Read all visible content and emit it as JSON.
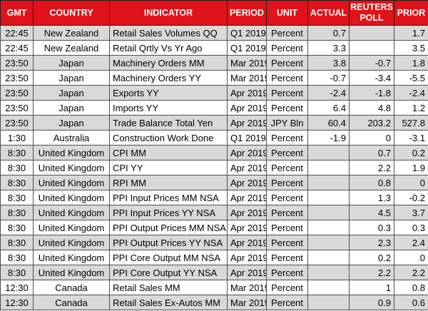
{
  "colors": {
    "header_bg": "#e0131a",
    "header_fg": "#ffffff",
    "row_alt_bg": "#d9d9d9",
    "row_bg": "#ffffff",
    "grid_line": "#4f4f4f"
  },
  "chart_data": {
    "type": "table",
    "title": "Economic indicators release schedule",
    "columns": [
      "GMT",
      "COUNTRY",
      "INDICATOR",
      "PERIOD",
      "UNIT",
      "ACTUAL",
      "REUTERS POLL",
      "PRIOR"
    ],
    "rows": [
      [
        "22:45",
        "New Zealand",
        "Retail Sales Volumes QQ",
        "Q1 2019",
        "Percent",
        "0.7",
        "",
        "1.7"
      ],
      [
        "22:45",
        "New Zealand",
        "Retail Qrtly Vs Yr Ago",
        "Q1 2019",
        "Percent",
        "3.3",
        "",
        "3.5"
      ],
      [
        "23:50",
        "Japan",
        "Machinery Orders MM",
        "Mar 2019",
        "Percent",
        "3.8",
        "-0.7",
        "1.8"
      ],
      [
        "23:50",
        "Japan",
        "Machinery Orders YY",
        "Mar 2019",
        "Percent",
        "-0.7",
        "-3.4",
        "-5.5"
      ],
      [
        "23:50",
        "Japan",
        "Exports YY",
        "Apr 2019",
        "Percent",
        "-2.4",
        "-1.8",
        "-2.4"
      ],
      [
        "23:50",
        "Japan",
        "Imports YY",
        "Apr 2019",
        "Percent",
        "6.4",
        "4.8",
        "1.2"
      ],
      [
        "23:50",
        "Japan",
        "Trade Balance Total Yen",
        "Apr 2019",
        "JPY Bln",
        "60.4",
        "203.2",
        "527.8"
      ],
      [
        "1:30",
        "Australia",
        "Construction Work Done",
        "Q1 2019",
        "Percent",
        "-1.9",
        "0",
        "-3.1"
      ],
      [
        "8:30",
        "United Kingdom",
        "CPI MM",
        "Apr 2019",
        "Percent",
        "",
        "0.7",
        "0.2"
      ],
      [
        "8:30",
        "United Kingdom",
        "CPI YY",
        "Apr 2019",
        "Percent",
        "",
        "2.2",
        "1.9"
      ],
      [
        "8:30",
        "United Kingdom",
        "RPI MM",
        "Apr 2019",
        "Percent",
        "",
        "0.8",
        "0"
      ],
      [
        "8:30",
        "United Kingdom",
        "PPI Input Prices MM NSA",
        "Apr 2019",
        "Percent",
        "",
        "1.3",
        "-0.2"
      ],
      [
        "8:30",
        "United Kingdom",
        "PPI Input Prices YY NSA",
        "Apr 2019",
        "Percent",
        "",
        "4.5",
        "3.7"
      ],
      [
        "8:30",
        "United Kingdom",
        "PPI Output Prices MM NSA",
        "Apr 2019",
        "Percent",
        "",
        "0.3",
        "0.3"
      ],
      [
        "8:30",
        "United Kingdom",
        "PPI Output Prices YY NSA",
        "Apr 2019",
        "Percent",
        "",
        "2.3",
        "2.4"
      ],
      [
        "8:30",
        "United Kingdom",
        "PPI Core Output MM NSA",
        "Apr 2019",
        "Percent",
        "",
        "0.2",
        "0"
      ],
      [
        "8:30",
        "United Kingdom",
        "PPI Core Output YY NSA",
        "Apr 2019",
        "Percent",
        "",
        "2.2",
        "2.2"
      ],
      [
        "12:30",
        "Canada",
        "Retail Sales MM",
        "Mar 2019",
        "Percent",
        "",
        "1",
        "0.8"
      ],
      [
        "12:30",
        "Canada",
        "Retail Sales Ex-Autos MM",
        "Mar 2019",
        "Percent",
        "",
        "0.9",
        "0.6"
      ]
    ]
  }
}
